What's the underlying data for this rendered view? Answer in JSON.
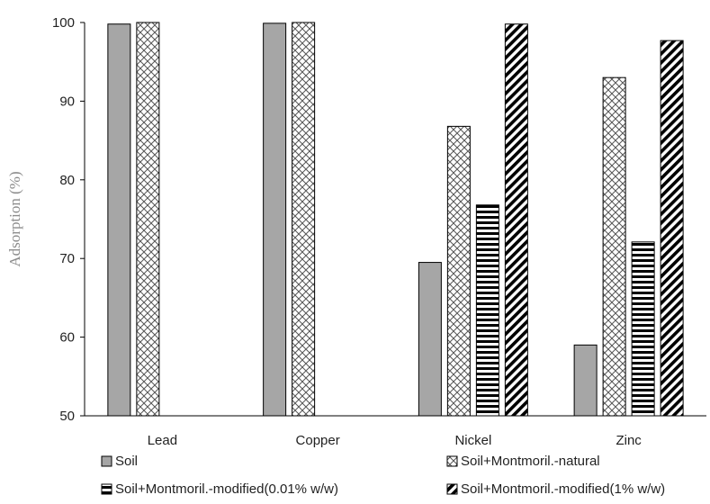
{
  "chart_data": {
    "type": "bar",
    "title": "",
    "xlabel": "",
    "ylabel": "Adsorption (%)",
    "ylim": [
      50,
      100
    ],
    "yticks": [
      50,
      60,
      70,
      80,
      90,
      100
    ],
    "grid": false,
    "legend_position": "bottom",
    "categories": [
      "Lead",
      "Copper",
      "Nickel",
      "Zinc"
    ],
    "series": [
      {
        "name": "Soil",
        "pattern": "solid-gray",
        "values": [
          99.8,
          99.9,
          69.5,
          59.0
        ]
      },
      {
        "name": "Soil+Montmoril.-natural",
        "pattern": "diamond-check",
        "values": [
          100.0,
          100.0,
          86.8,
          93.0
        ]
      },
      {
        "name": "Soil+Montmoril.-modified(0.01% w/w)",
        "pattern": "horizontal-stripes",
        "values": [
          null,
          null,
          76.8,
          72.1
        ]
      },
      {
        "name": "Soil+Montmoril.-modified(1% w/w)",
        "pattern": "diagonal-stripes",
        "values": [
          null,
          null,
          99.8,
          97.7
        ]
      }
    ],
    "colors": {
      "soil_fill": "#a6a6a6",
      "stroke": "#000000",
      "ylabel": "#8c8c8c"
    }
  }
}
